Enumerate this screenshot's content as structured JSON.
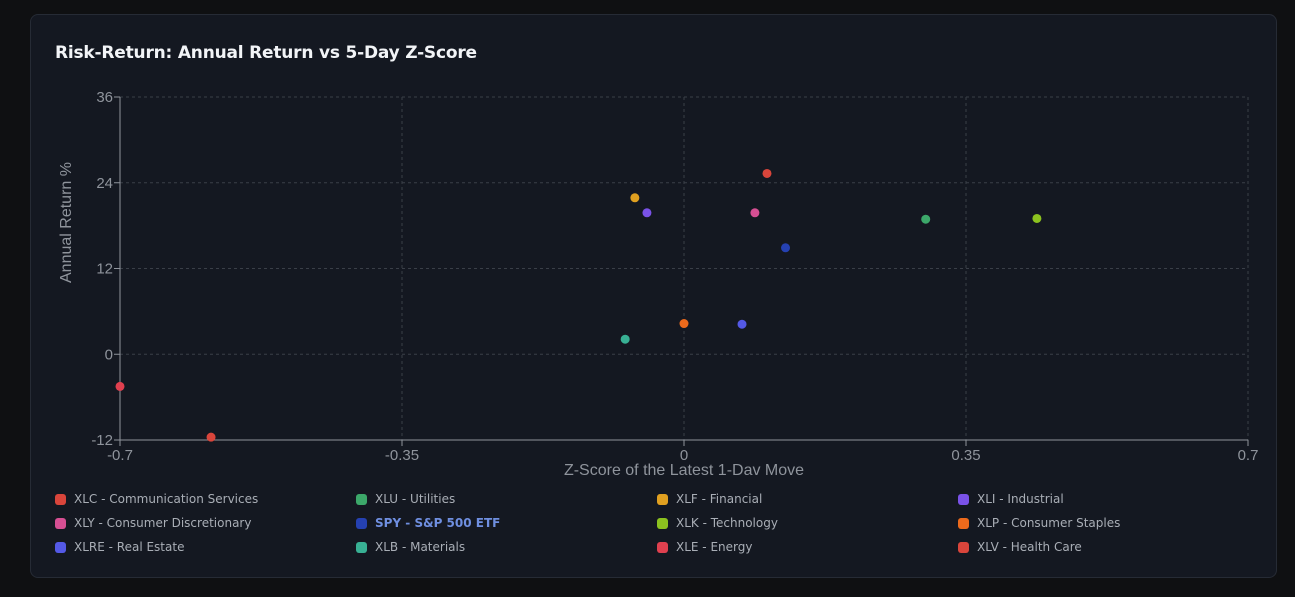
{
  "chart_data": {
    "type": "scatter",
    "title": "Risk-Return: Annual Return vs 5-Day Z-Score",
    "xlabel": "Z-Score of the Latest 1-Dav Move",
    "ylabel": "Annual Return %",
    "xlim": [
      -0.7,
      0.7
    ],
    "ylim": [
      -12,
      36
    ],
    "x_ticks": [
      -0.7,
      -0.35,
      0,
      0.35,
      0.7
    ],
    "x_tick_labels": [
      "-0.7",
      "-0.35",
      "0",
      "0.35",
      "0.7"
    ],
    "y_ticks": [
      -12,
      0,
      12,
      24,
      36
    ],
    "y_tick_labels": [
      "-12",
      "0",
      "12",
      "24",
      "36"
    ],
    "grid": true,
    "legend_position": "bottom",
    "series": [
      {
        "name": "XLC - Communication Services",
        "color": "#d9453b",
        "x": -0.587,
        "y": -11.6
      },
      {
        "name": "XLU - Utilities",
        "color": "#3ca86a",
        "x": 0.3,
        "y": 18.9
      },
      {
        "name": "XLF - Financial",
        "color": "#e0a020",
        "x": -0.061,
        "y": 21.9
      },
      {
        "name": "XLI - Industrial",
        "color": "#7a52e8",
        "x": -0.046,
        "y": 19.8
      },
      {
        "name": "XLY - Consumer Discretionary",
        "color": "#d64f93",
        "x": 0.088,
        "y": 19.8
      },
      {
        "name": "SPY - S&P 500 ETF",
        "color": "#2541b2",
        "x": 0.126,
        "y": 14.9,
        "highlight": true
      },
      {
        "name": "XLK - Technology",
        "color": "#8cc21f",
        "x": 0.438,
        "y": 19.0
      },
      {
        "name": "XLP - Consumer Staples",
        "color": "#ec6a1c",
        "x": 0.0,
        "y": 4.3
      },
      {
        "name": "XLRE - Real Estate",
        "color": "#5459e6",
        "x": 0.072,
        "y": 4.2
      },
      {
        "name": "XLB - Materials",
        "color": "#38b094",
        "x": -0.073,
        "y": 2.1
      },
      {
        "name": "XLE - Energy",
        "color": "#e0404f",
        "x": -0.7,
        "y": -4.5
      },
      {
        "name": "XLV - Health Care",
        "color": "#d9453b",
        "x": 0.103,
        "y": 25.3
      }
    ]
  }
}
